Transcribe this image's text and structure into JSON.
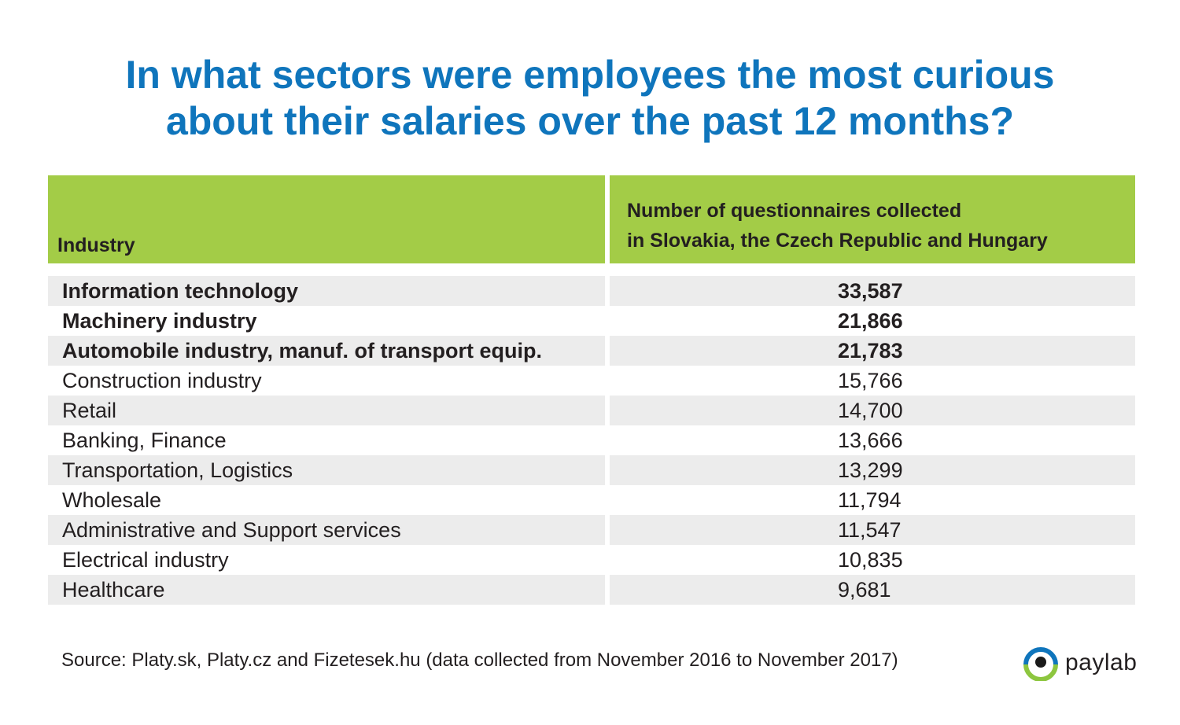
{
  "title": {
    "line1": "In what sectors were employees the most curious",
    "line2": "about their salaries over the past 12 months?"
  },
  "chart_data": {
    "type": "table",
    "columns": [
      "Industry",
      "Number of questionnaires collected in Slovakia, the Czech Republic and Hungary"
    ],
    "header": {
      "industry": "Industry",
      "count_line1": "Number of questionnaires collected",
      "count_line2": "in Slovakia, the Czech Republic and Hungary"
    },
    "rows": [
      {
        "industry": "Information technology",
        "count": "33,587",
        "value": 33587,
        "bold": true
      },
      {
        "industry": "Machinery industry",
        "count": "21,866",
        "value": 21866,
        "bold": true
      },
      {
        "industry": "Automobile industry, manuf. of transport equip.",
        "count": "21,783",
        "value": 21783,
        "bold": true
      },
      {
        "industry": "Construction industry",
        "count": "15,766",
        "value": 15766,
        "bold": false
      },
      {
        "industry": "Retail",
        "count": "14,700",
        "value": 14700,
        "bold": false
      },
      {
        "industry": "Banking, Finance",
        "count": "13,666",
        "value": 13666,
        "bold": false
      },
      {
        "industry": "Transportation, Logistics",
        "count": "13,299",
        "value": 13299,
        "bold": false
      },
      {
        "industry": "Wholesale",
        "count": "11,794",
        "value": 11794,
        "bold": false
      },
      {
        "industry": "Administrative and Support services",
        "count": "11,547",
        "value": 11547,
        "bold": false
      },
      {
        "industry": "Electrical industry",
        "count": "10,835",
        "value": 10835,
        "bold": false
      },
      {
        "industry": "Healthcare",
        "count": "9,681",
        "value": 9681,
        "bold": false
      }
    ]
  },
  "source": "Source: Platy.sk, Platy.cz and Fizetesek.hu (data collected from November 2016 to November 2017)",
  "logo": {
    "text": "paylab",
    "icon": "eye-logo-icon"
  },
  "colors": {
    "title": "#0f75bc",
    "header_bg": "#a3cc47",
    "row_shade": "#ececec",
    "logo_blue": "#0f75bc",
    "logo_green": "#8dc63f"
  }
}
